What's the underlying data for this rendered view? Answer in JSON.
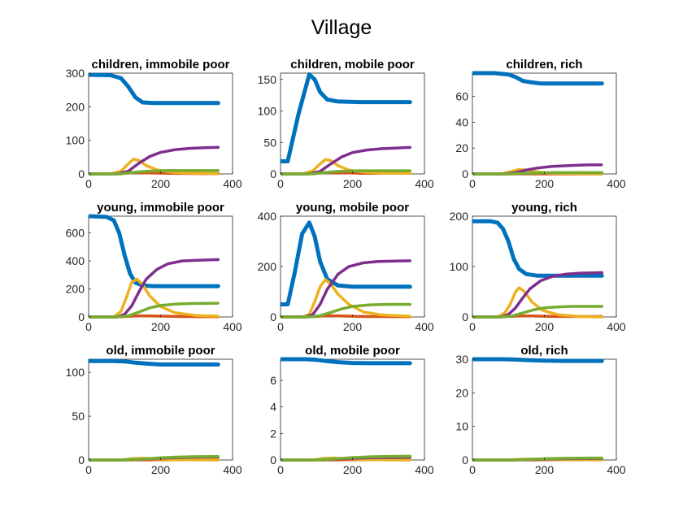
{
  "figure_title": "Village",
  "series_colors": [
    "#0072BD",
    "#D95319",
    "#EDB120",
    "#7E2F8E",
    "#77AC30"
  ],
  "chart_data": [
    {
      "type": "scatter",
      "title": "children, immobile poor",
      "xlim": [
        0,
        400
      ],
      "ylim": [
        0,
        300
      ],
      "xticks": [
        0,
        200,
        400
      ],
      "yticks": [
        0,
        100,
        200,
        300
      ],
      "series": [
        {
          "x": [
            0,
            60,
            90,
            110,
            130,
            150,
            180,
            220,
            360
          ],
          "y": [
            295,
            294,
            285,
            260,
            228,
            213,
            211,
            211,
            211
          ]
        },
        {
          "x": [
            0,
            60,
            100,
            130,
            170,
            220,
            300,
            360
          ],
          "y": [
            0,
            0,
            2,
            4,
            3,
            2,
            1,
            1
          ]
        },
        {
          "x": [
            0,
            60,
            90,
            110,
            125,
            140,
            160,
            190,
            230,
            280,
            360
          ],
          "y": [
            0,
            0,
            8,
            30,
            44,
            40,
            25,
            12,
            5,
            2,
            1
          ]
        },
        {
          "x": [
            0,
            80,
            110,
            140,
            170,
            200,
            240,
            280,
            320,
            360
          ],
          "y": [
            0,
            0,
            8,
            32,
            52,
            64,
            72,
            76,
            78,
            79
          ]
        },
        {
          "x": [
            0,
            90,
            120,
            160,
            220,
            360
          ],
          "y": [
            0,
            0,
            4,
            8,
            10,
            10
          ]
        }
      ]
    },
    {
      "type": "scatter",
      "title": "children, mobile poor",
      "xlim": [
        0,
        400
      ],
      "ylim": [
        0,
        160
      ],
      "xticks": [
        0,
        200,
        400
      ],
      "yticks": [
        0,
        50,
        100,
        150
      ],
      "series": [
        {
          "x": [
            0,
            20,
            50,
            80,
            95,
            110,
            130,
            160,
            220,
            360
          ],
          "y": [
            20,
            20,
            95,
            158,
            150,
            130,
            118,
            115,
            114,
            114
          ]
        },
        {
          "x": [
            0,
            60,
            100,
            130,
            170,
            220,
            360
          ],
          "y": [
            0,
            0,
            1,
            2,
            2,
            1,
            1
          ]
        },
        {
          "x": [
            0,
            60,
            90,
            110,
            125,
            140,
            160,
            190,
            230,
            280,
            360
          ],
          "y": [
            0,
            0,
            5,
            16,
            23,
            21,
            13,
            6,
            3,
            1,
            1
          ]
        },
        {
          "x": [
            0,
            80,
            110,
            140,
            170,
            200,
            240,
            280,
            320,
            360
          ],
          "y": [
            0,
            0,
            4,
            16,
            27,
            34,
            38,
            40,
            41,
            42
          ]
        },
        {
          "x": [
            0,
            90,
            120,
            160,
            220,
            360
          ],
          "y": [
            0,
            0,
            2,
            4,
            5,
            5
          ]
        }
      ]
    },
    {
      "type": "scatter",
      "title": "children, rich",
      "xlim": [
        0,
        400
      ],
      "ylim": [
        0,
        78
      ],
      "xticks": [
        0,
        200,
        400
      ],
      "yticks": [
        0,
        20,
        40,
        60
      ],
      "series": [
        {
          "x": [
            0,
            60,
            100,
            120,
            140,
            160,
            190,
            230,
            360
          ],
          "y": [
            78,
            78,
            77,
            75,
            72,
            71,
            70,
            70,
            70
          ]
        },
        {
          "x": [
            0,
            360
          ],
          "y": [
            0,
            0
          ]
        },
        {
          "x": [
            0,
            80,
            110,
            130,
            150,
            180,
            220,
            360
          ],
          "y": [
            0,
            0,
            2,
            3.5,
            3,
            1.5,
            0.5,
            0
          ]
        },
        {
          "x": [
            0,
            90,
            120,
            150,
            180,
            220,
            270,
            320,
            360
          ],
          "y": [
            0,
            0,
            1,
            3,
            4.5,
            5.8,
            6.5,
            7,
            7
          ]
        },
        {
          "x": [
            0,
            100,
            150,
            220,
            360
          ],
          "y": [
            0,
            0,
            0.5,
            1,
            1
          ]
        }
      ]
    },
    {
      "type": "scatter",
      "title": "young, immobile poor",
      "xlim": [
        0,
        400
      ],
      "ylim": [
        0,
        720
      ],
      "xticks": [
        0,
        200,
        400
      ],
      "yticks": [
        0,
        200,
        400,
        600
      ],
      "series": [
        {
          "x": [
            0,
            50,
            70,
            85,
            100,
            115,
            130,
            150,
            180,
            360
          ],
          "y": [
            720,
            715,
            690,
            600,
            440,
            310,
            245,
            225,
            220,
            220
          ]
        },
        {
          "x": [
            0,
            60,
            90,
            120,
            150,
            200,
            260,
            360
          ],
          "y": [
            0,
            0,
            2,
            6,
            8,
            6,
            3,
            2
          ]
        },
        {
          "x": [
            0,
            70,
            90,
            105,
            120,
            135,
            150,
            170,
            200,
            240,
            300,
            360
          ],
          "y": [
            0,
            0,
            40,
            140,
            250,
            270,
            230,
            150,
            75,
            30,
            10,
            5
          ]
        },
        {
          "x": [
            0,
            80,
            100,
            120,
            140,
            160,
            190,
            220,
            260,
            300,
            360
          ],
          "y": [
            0,
            0,
            20,
            80,
            180,
            270,
            340,
            380,
            400,
            405,
            410
          ]
        },
        {
          "x": [
            0,
            80,
            110,
            140,
            170,
            200,
            240,
            280,
            360
          ],
          "y": [
            0,
            0,
            8,
            35,
            65,
            82,
            92,
            96,
            98
          ]
        }
      ]
    },
    {
      "type": "scatter",
      "title": "young, mobile poor",
      "xlim": [
        0,
        400
      ],
      "ylim": [
        0,
        400
      ],
      "xticks": [
        0,
        200,
        400
      ],
      "yticks": [
        0,
        200,
        400
      ],
      "series": [
        {
          "x": [
            0,
            20,
            40,
            60,
            80,
            95,
            110,
            130,
            160,
            200,
            360
          ],
          "y": [
            50,
            50,
            180,
            330,
            375,
            320,
            220,
            150,
            125,
            120,
            120
          ]
        },
        {
          "x": [
            0,
            60,
            100,
            130,
            170,
            220,
            360
          ],
          "y": [
            0,
            0,
            2,
            5,
            4,
            2,
            1
          ]
        },
        {
          "x": [
            0,
            60,
            80,
            95,
            110,
            125,
            140,
            160,
            190,
            230,
            280,
            360
          ],
          "y": [
            0,
            0,
            10,
            60,
            120,
            148,
            130,
            90,
            50,
            20,
            8,
            3
          ]
        },
        {
          "x": [
            0,
            70,
            90,
            110,
            130,
            160,
            190,
            230,
            270,
            320,
            360
          ],
          "y": [
            0,
            0,
            10,
            50,
            110,
            170,
            200,
            215,
            220,
            222,
            223
          ]
        },
        {
          "x": [
            0,
            80,
            110,
            140,
            170,
            200,
            250,
            300,
            360
          ],
          "y": [
            0,
            0,
            5,
            18,
            32,
            42,
            48,
            50,
            50
          ]
        }
      ]
    },
    {
      "type": "scatter",
      "title": "young, rich",
      "xlim": [
        0,
        400
      ],
      "ylim": [
        0,
        200
      ],
      "xticks": [
        0,
        200,
        400
      ],
      "yticks": [
        0,
        100,
        200
      ],
      "series": [
        {
          "x": [
            0,
            50,
            70,
            85,
            100,
            115,
            130,
            150,
            180,
            220,
            360
          ],
          "y": [
            190,
            190,
            187,
            175,
            150,
            115,
            95,
            85,
            82,
            82,
            82
          ]
        },
        {
          "x": [
            0,
            60,
            100,
            130,
            170,
            220,
            360
          ],
          "y": [
            0,
            0,
            1,
            2,
            2,
            1,
            1
          ]
        },
        {
          "x": [
            0,
            70,
            90,
            105,
            120,
            130,
            145,
            165,
            195,
            240,
            300,
            360
          ],
          "y": [
            0,
            0,
            8,
            25,
            50,
            58,
            50,
            30,
            13,
            4,
            1,
            0
          ]
        },
        {
          "x": [
            0,
            80,
            100,
            120,
            140,
            160,
            190,
            220,
            260,
            300,
            360
          ],
          "y": [
            0,
            0,
            5,
            18,
            38,
            56,
            72,
            80,
            85,
            87,
            88
          ]
        },
        {
          "x": [
            0,
            80,
            110,
            140,
            170,
            200,
            240,
            280,
            360
          ],
          "y": [
            0,
            0,
            2,
            8,
            14,
            18,
            20,
            21,
            21
          ]
        }
      ]
    },
    {
      "type": "scatter",
      "title": "old, immobile poor",
      "xlim": [
        0,
        400
      ],
      "ylim": [
        0,
        115
      ],
      "xticks": [
        0,
        200,
        400
      ],
      "yticks": [
        0,
        50,
        100
      ],
      "series": [
        {
          "x": [
            0,
            70,
            100,
            130,
            160,
            200,
            250,
            360
          ],
          "y": [
            113,
            113,
            112.5,
            111,
            110,
            109,
            109,
            109
          ]
        },
        {
          "x": [
            0,
            100,
            200,
            360
          ],
          "y": [
            0,
            0,
            0.3,
            0.4
          ]
        },
        {
          "x": [
            0,
            90,
            120,
            150,
            190,
            240,
            360
          ],
          "y": [
            0,
            0,
            1.5,
            2,
            1,
            0.3,
            0
          ]
        },
        {
          "x": [
            0,
            100,
            150,
            200,
            250,
            300,
            360
          ],
          "y": [
            0,
            0,
            1,
            2,
            2.8,
            3.2,
            3.5
          ]
        },
        {
          "x": [
            0,
            100,
            150,
            200,
            250,
            300,
            360
          ],
          "y": [
            0,
            0,
            1,
            2.5,
            3.3,
            3.8,
            4
          ]
        }
      ]
    },
    {
      "type": "scatter",
      "title": "old, mobile poor",
      "xlim": [
        0,
        400
      ],
      "ylim": [
        0,
        7.6
      ],
      "xticks": [
        0,
        200,
        400
      ],
      "yticks": [
        0,
        2,
        4,
        6
      ],
      "series": [
        {
          "x": [
            0,
            70,
            100,
            130,
            160,
            200,
            250,
            360
          ],
          "y": [
            7.6,
            7.6,
            7.55,
            7.45,
            7.38,
            7.32,
            7.3,
            7.3
          ]
        },
        {
          "x": [
            0,
            100,
            200,
            360
          ],
          "y": [
            0,
            0,
            0.02,
            0.03
          ]
        },
        {
          "x": [
            0,
            90,
            120,
            150,
            190,
            240,
            360
          ],
          "y": [
            0,
            0,
            0.12,
            0.15,
            0.08,
            0.02,
            0
          ]
        },
        {
          "x": [
            0,
            100,
            150,
            200,
            250,
            300,
            360
          ],
          "y": [
            0,
            0,
            0.07,
            0.13,
            0.17,
            0.19,
            0.2
          ]
        },
        {
          "x": [
            0,
            100,
            150,
            200,
            250,
            300,
            360
          ],
          "y": [
            0,
            0,
            0.08,
            0.18,
            0.24,
            0.27,
            0.28
          ]
        }
      ]
    },
    {
      "type": "scatter",
      "title": "old, rich",
      "xlim": [
        0,
        400
      ],
      "ylim": [
        0,
        30
      ],
      "xticks": [
        0,
        200,
        400
      ],
      "yticks": [
        0,
        10,
        20,
        30
      ],
      "series": [
        {
          "x": [
            0,
            80,
            120,
            160,
            200,
            250,
            360
          ],
          "y": [
            30,
            30,
            29.9,
            29.7,
            29.6,
            29.5,
            29.5
          ]
        },
        {
          "x": [
            0,
            100,
            200,
            360
          ],
          "y": [
            0,
            0,
            0.05,
            0.05
          ]
        },
        {
          "x": [
            0,
            100,
            130,
            160,
            200,
            260,
            360
          ],
          "y": [
            0,
            0,
            0.2,
            0.25,
            0.15,
            0.05,
            0
          ]
        },
        {
          "x": [
            0,
            110,
            160,
            210,
            260,
            310,
            360
          ],
          "y": [
            0,
            0,
            0.15,
            0.3,
            0.38,
            0.42,
            0.45
          ]
        },
        {
          "x": [
            0,
            110,
            160,
            210,
            260,
            310,
            360
          ],
          "y": [
            0,
            0,
            0.2,
            0.4,
            0.5,
            0.55,
            0.58
          ]
        }
      ]
    }
  ]
}
